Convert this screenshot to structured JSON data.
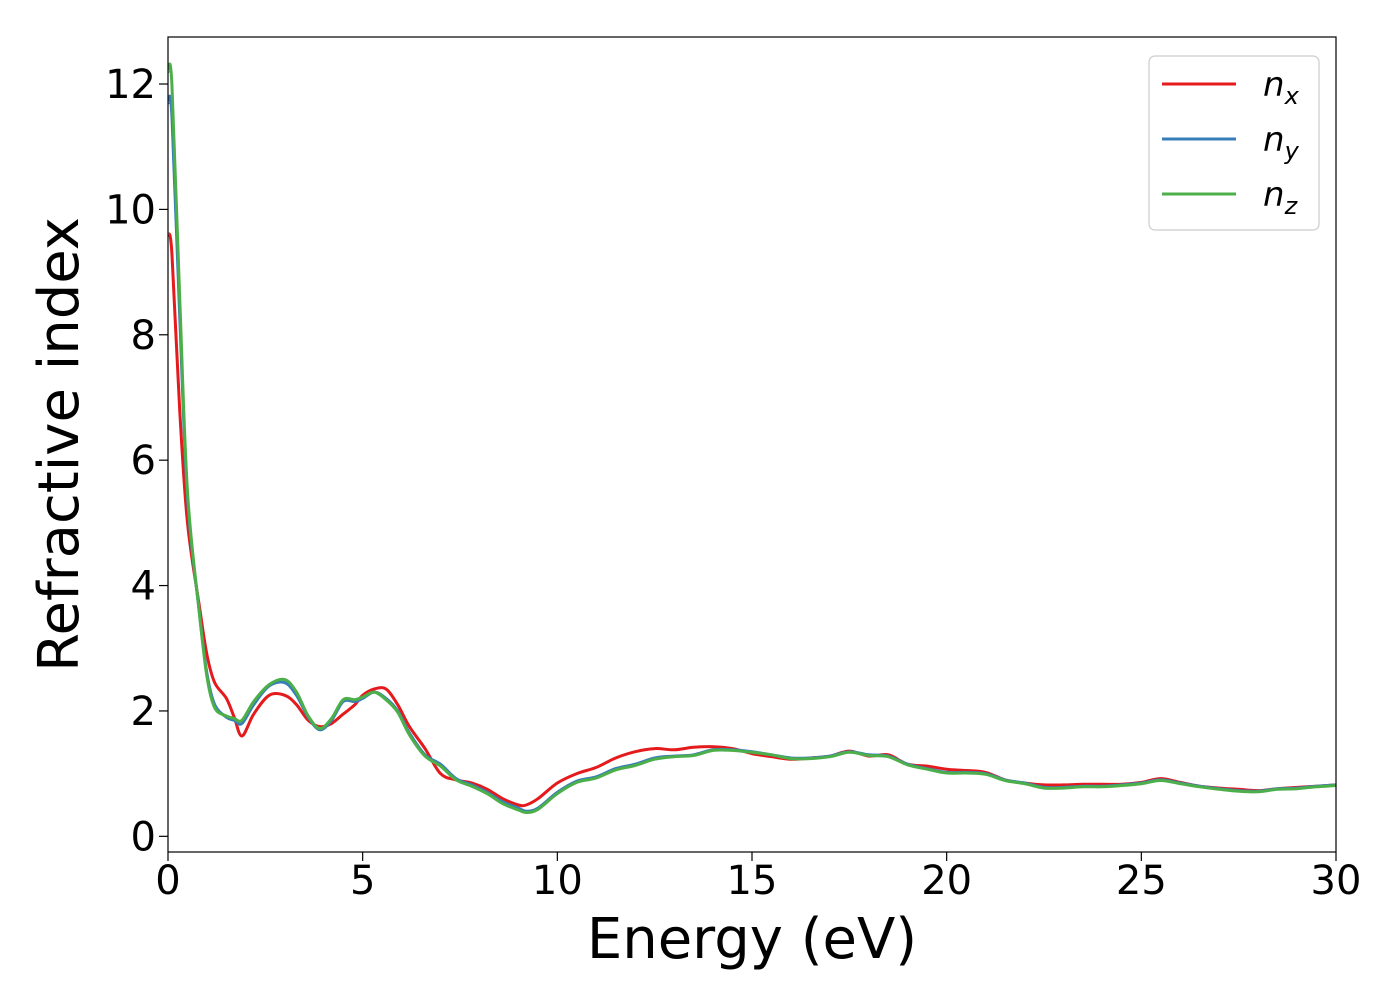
{
  "chart_data": {
    "type": "line",
    "xlabel": "Energy (eV)",
    "ylabel": "Refractive index",
    "xlim": [
      0,
      30
    ],
    "ylim": [
      -0.25,
      12.75
    ],
    "xticks": [
      0,
      5,
      10,
      15,
      20,
      25,
      30
    ],
    "yticks": [
      0,
      2,
      4,
      6,
      8,
      10,
      12
    ],
    "grid": false,
    "legend_position": "top-right",
    "series": [
      {
        "name": "n_x",
        "legend_base": "n",
        "legend_sub": "x",
        "color": "#e41a1c",
        "x": [
          0,
          0.1,
          0.3,
          0.5,
          0.8,
          1.0,
          1.2,
          1.5,
          1.7,
          1.9,
          2.2,
          2.6,
          3.0,
          3.3,
          3.6,
          3.9,
          4.2,
          4.5,
          4.8,
          5.0,
          5.3,
          5.6,
          5.9,
          6.2,
          6.6,
          7.0,
          7.4,
          7.8,
          8.2,
          8.6,
          9.0,
          9.2,
          9.5,
          10.0,
          10.5,
          11.0,
          11.5,
          12.0,
          12.5,
          13.0,
          13.5,
          14.0,
          14.5,
          15.0,
          15.5,
          16.0,
          16.5,
          17.0,
          17.5,
          18.0,
          18.5,
          19.0,
          19.5,
          20.0,
          20.5,
          21.0,
          21.5,
          22.0,
          22.5,
          23.0,
          23.5,
          24.0,
          24.5,
          25.0,
          25.5,
          26.0,
          26.5,
          27.0,
          27.5,
          28.0,
          28.5,
          29.0,
          29.5,
          30.0
        ],
        "y": [
          9.6,
          9.3,
          6.8,
          5.0,
          3.7,
          2.9,
          2.45,
          2.2,
          1.9,
          1.6,
          1.95,
          2.25,
          2.25,
          2.1,
          1.85,
          1.75,
          1.8,
          1.95,
          2.1,
          2.25,
          2.35,
          2.35,
          2.1,
          1.75,
          1.4,
          1.0,
          0.9,
          0.85,
          0.75,
          0.6,
          0.5,
          0.5,
          0.6,
          0.85,
          1.0,
          1.1,
          1.25,
          1.35,
          1.4,
          1.38,
          1.42,
          1.43,
          1.4,
          1.32,
          1.27,
          1.23,
          1.25,
          1.28,
          1.36,
          1.28,
          1.3,
          1.15,
          1.12,
          1.07,
          1.05,
          1.02,
          0.9,
          0.85,
          0.82,
          0.82,
          0.83,
          0.83,
          0.83,
          0.86,
          0.92,
          0.86,
          0.8,
          0.77,
          0.75,
          0.73,
          0.76,
          0.78,
          0.8,
          0.82
        ]
      },
      {
        "name": "n_y",
        "legend_base": "n",
        "legend_sub": "y",
        "color": "#377eb8",
        "x": [
          0,
          0.1,
          0.3,
          0.5,
          0.8,
          1.0,
          1.2,
          1.5,
          1.7,
          1.9,
          2.2,
          2.6,
          3.0,
          3.3,
          3.6,
          3.9,
          4.2,
          4.5,
          4.8,
          5.0,
          5.3,
          5.6,
          5.9,
          6.2,
          6.6,
          7.0,
          7.4,
          7.8,
          8.2,
          8.6,
          9.0,
          9.2,
          9.5,
          10.0,
          10.5,
          11.0,
          11.5,
          12.0,
          12.5,
          13.0,
          13.5,
          14.0,
          14.5,
          15.0,
          15.5,
          16.0,
          16.5,
          17.0,
          17.5,
          18.0,
          18.5,
          19.0,
          19.5,
          20.0,
          20.5,
          21.0,
          21.5,
          22.0,
          22.5,
          23.0,
          23.5,
          24.0,
          24.5,
          25.0,
          25.5,
          26.0,
          26.5,
          27.0,
          27.5,
          28.0,
          28.5,
          29.0,
          29.5,
          30.0
        ],
        "y": [
          11.7,
          11.5,
          8.3,
          5.4,
          3.6,
          2.6,
          2.1,
          1.9,
          1.85,
          1.8,
          2.1,
          2.4,
          2.45,
          2.25,
          1.9,
          1.7,
          1.85,
          2.15,
          2.15,
          2.2,
          2.3,
          2.2,
          2.0,
          1.65,
          1.3,
          1.15,
          0.92,
          0.82,
          0.7,
          0.55,
          0.45,
          0.4,
          0.45,
          0.7,
          0.88,
          0.95,
          1.08,
          1.15,
          1.25,
          1.28,
          1.3,
          1.38,
          1.38,
          1.35,
          1.3,
          1.25,
          1.25,
          1.28,
          1.35,
          1.3,
          1.28,
          1.15,
          1.08,
          1.02,
          1.02,
          1.0,
          0.9,
          0.85,
          0.78,
          0.78,
          0.8,
          0.8,
          0.82,
          0.85,
          0.9,
          0.85,
          0.8,
          0.76,
          0.73,
          0.72,
          0.76,
          0.77,
          0.8,
          0.82
        ]
      },
      {
        "name": "n_z",
        "legend_base": "n",
        "legend_sub": "z",
        "color": "#4daf4a",
        "x": [
          0,
          0.1,
          0.3,
          0.5,
          0.8,
          1.0,
          1.2,
          1.5,
          1.7,
          1.9,
          2.2,
          2.6,
          3.0,
          3.3,
          3.6,
          3.9,
          4.2,
          4.5,
          4.8,
          5.0,
          5.3,
          5.6,
          5.9,
          6.2,
          6.6,
          7.0,
          7.4,
          7.8,
          8.2,
          8.6,
          9.0,
          9.2,
          9.5,
          10.0,
          10.5,
          11.0,
          11.5,
          12.0,
          12.5,
          13.0,
          13.5,
          14.0,
          14.5,
          15.0,
          15.5,
          16.0,
          16.5,
          17.0,
          17.5,
          18.0,
          18.5,
          19.0,
          19.5,
          20.0,
          20.5,
          21.0,
          21.5,
          22.0,
          22.5,
          23.0,
          23.5,
          24.0,
          24.5,
          25.0,
          25.5,
          26.0,
          26.5,
          27.0,
          27.5,
          28.0,
          28.5,
          29.0,
          29.5,
          30.0
        ],
        "y": [
          12.2,
          12.0,
          8.6,
          5.5,
          3.6,
          2.55,
          2.05,
          1.92,
          1.88,
          1.85,
          2.15,
          2.42,
          2.5,
          2.3,
          1.92,
          1.72,
          1.88,
          2.18,
          2.18,
          2.22,
          2.3,
          2.18,
          1.98,
          1.62,
          1.28,
          1.12,
          0.9,
          0.8,
          0.68,
          0.52,
          0.42,
          0.38,
          0.43,
          0.68,
          0.86,
          0.93,
          1.06,
          1.13,
          1.23,
          1.27,
          1.29,
          1.37,
          1.37,
          1.34,
          1.3,
          1.24,
          1.24,
          1.27,
          1.34,
          1.29,
          1.27,
          1.14,
          1.07,
          1.01,
          1.01,
          0.99,
          0.89,
          0.84,
          0.77,
          0.77,
          0.79,
          0.79,
          0.81,
          0.84,
          0.89,
          0.84,
          0.79,
          0.75,
          0.72,
          0.71,
          0.75,
          0.76,
          0.79,
          0.81
        ]
      }
    ]
  }
}
